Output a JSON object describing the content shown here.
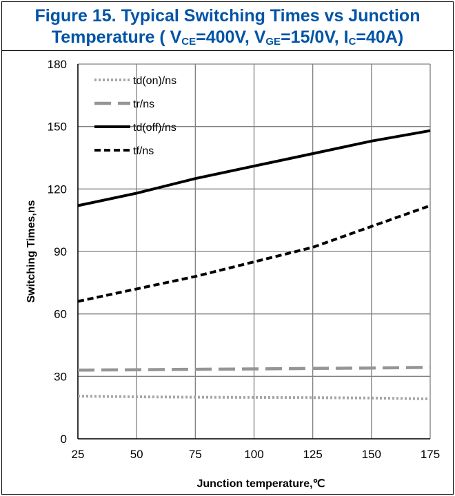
{
  "title": {
    "line1": "Figure 15. Typical Switching Times vs Junction",
    "line2_prefix": "Temperature ( V",
    "line2_sub1": "CE",
    "line2_mid1": "=400V, V",
    "line2_sub2": "GE",
    "line2_mid2": "=15/0V, I",
    "line2_sub3": "C",
    "line2_suffix": "=40A)"
  },
  "colors": {
    "title": "#0054A6",
    "grid": "#808080",
    "gray_series": "#A6A6A6",
    "gray_dashed": "#959595",
    "black": "#000000"
  },
  "chart_data": {
    "type": "line",
    "xlabel": "Junction temperature,℃",
    "ylabel": "Switching Times,ns",
    "xlim": [
      25,
      175
    ],
    "ylim": [
      0,
      180
    ],
    "xticks": [
      25,
      50,
      75,
      100,
      125,
      150,
      175
    ],
    "yticks": [
      0,
      30,
      60,
      90,
      120,
      150,
      180
    ],
    "grid": true,
    "legend_position": "top-left",
    "series": [
      {
        "name": "td(on)/ns",
        "style": "dotted",
        "color": "#A6A6A6",
        "x": [
          25,
          50,
          75,
          100,
          125,
          150,
          175
        ],
        "y": [
          20.5,
          20.2,
          20,
          19.9,
          19.8,
          19.6,
          19.2
        ]
      },
      {
        "name": "tr/ns",
        "style": "dashed-long",
        "color": "#959595",
        "x": [
          25,
          50,
          75,
          100,
          125,
          150,
          175
        ],
        "y": [
          33,
          33.2,
          33.4,
          33.6,
          33.8,
          34,
          34.3
        ]
      },
      {
        "name": "td(off)/ns",
        "style": "solid",
        "color": "#000000",
        "x": [
          25,
          50,
          75,
          100,
          125,
          150,
          175
        ],
        "y": [
          112,
          118,
          125,
          131,
          137,
          143,
          148
        ]
      },
      {
        "name": "tf/ns",
        "style": "dashed",
        "color": "#000000",
        "x": [
          25,
          50,
          75,
          100,
          125,
          150,
          175
        ],
        "y": [
          66,
          72,
          78,
          85,
          92,
          102,
          112
        ]
      }
    ]
  }
}
